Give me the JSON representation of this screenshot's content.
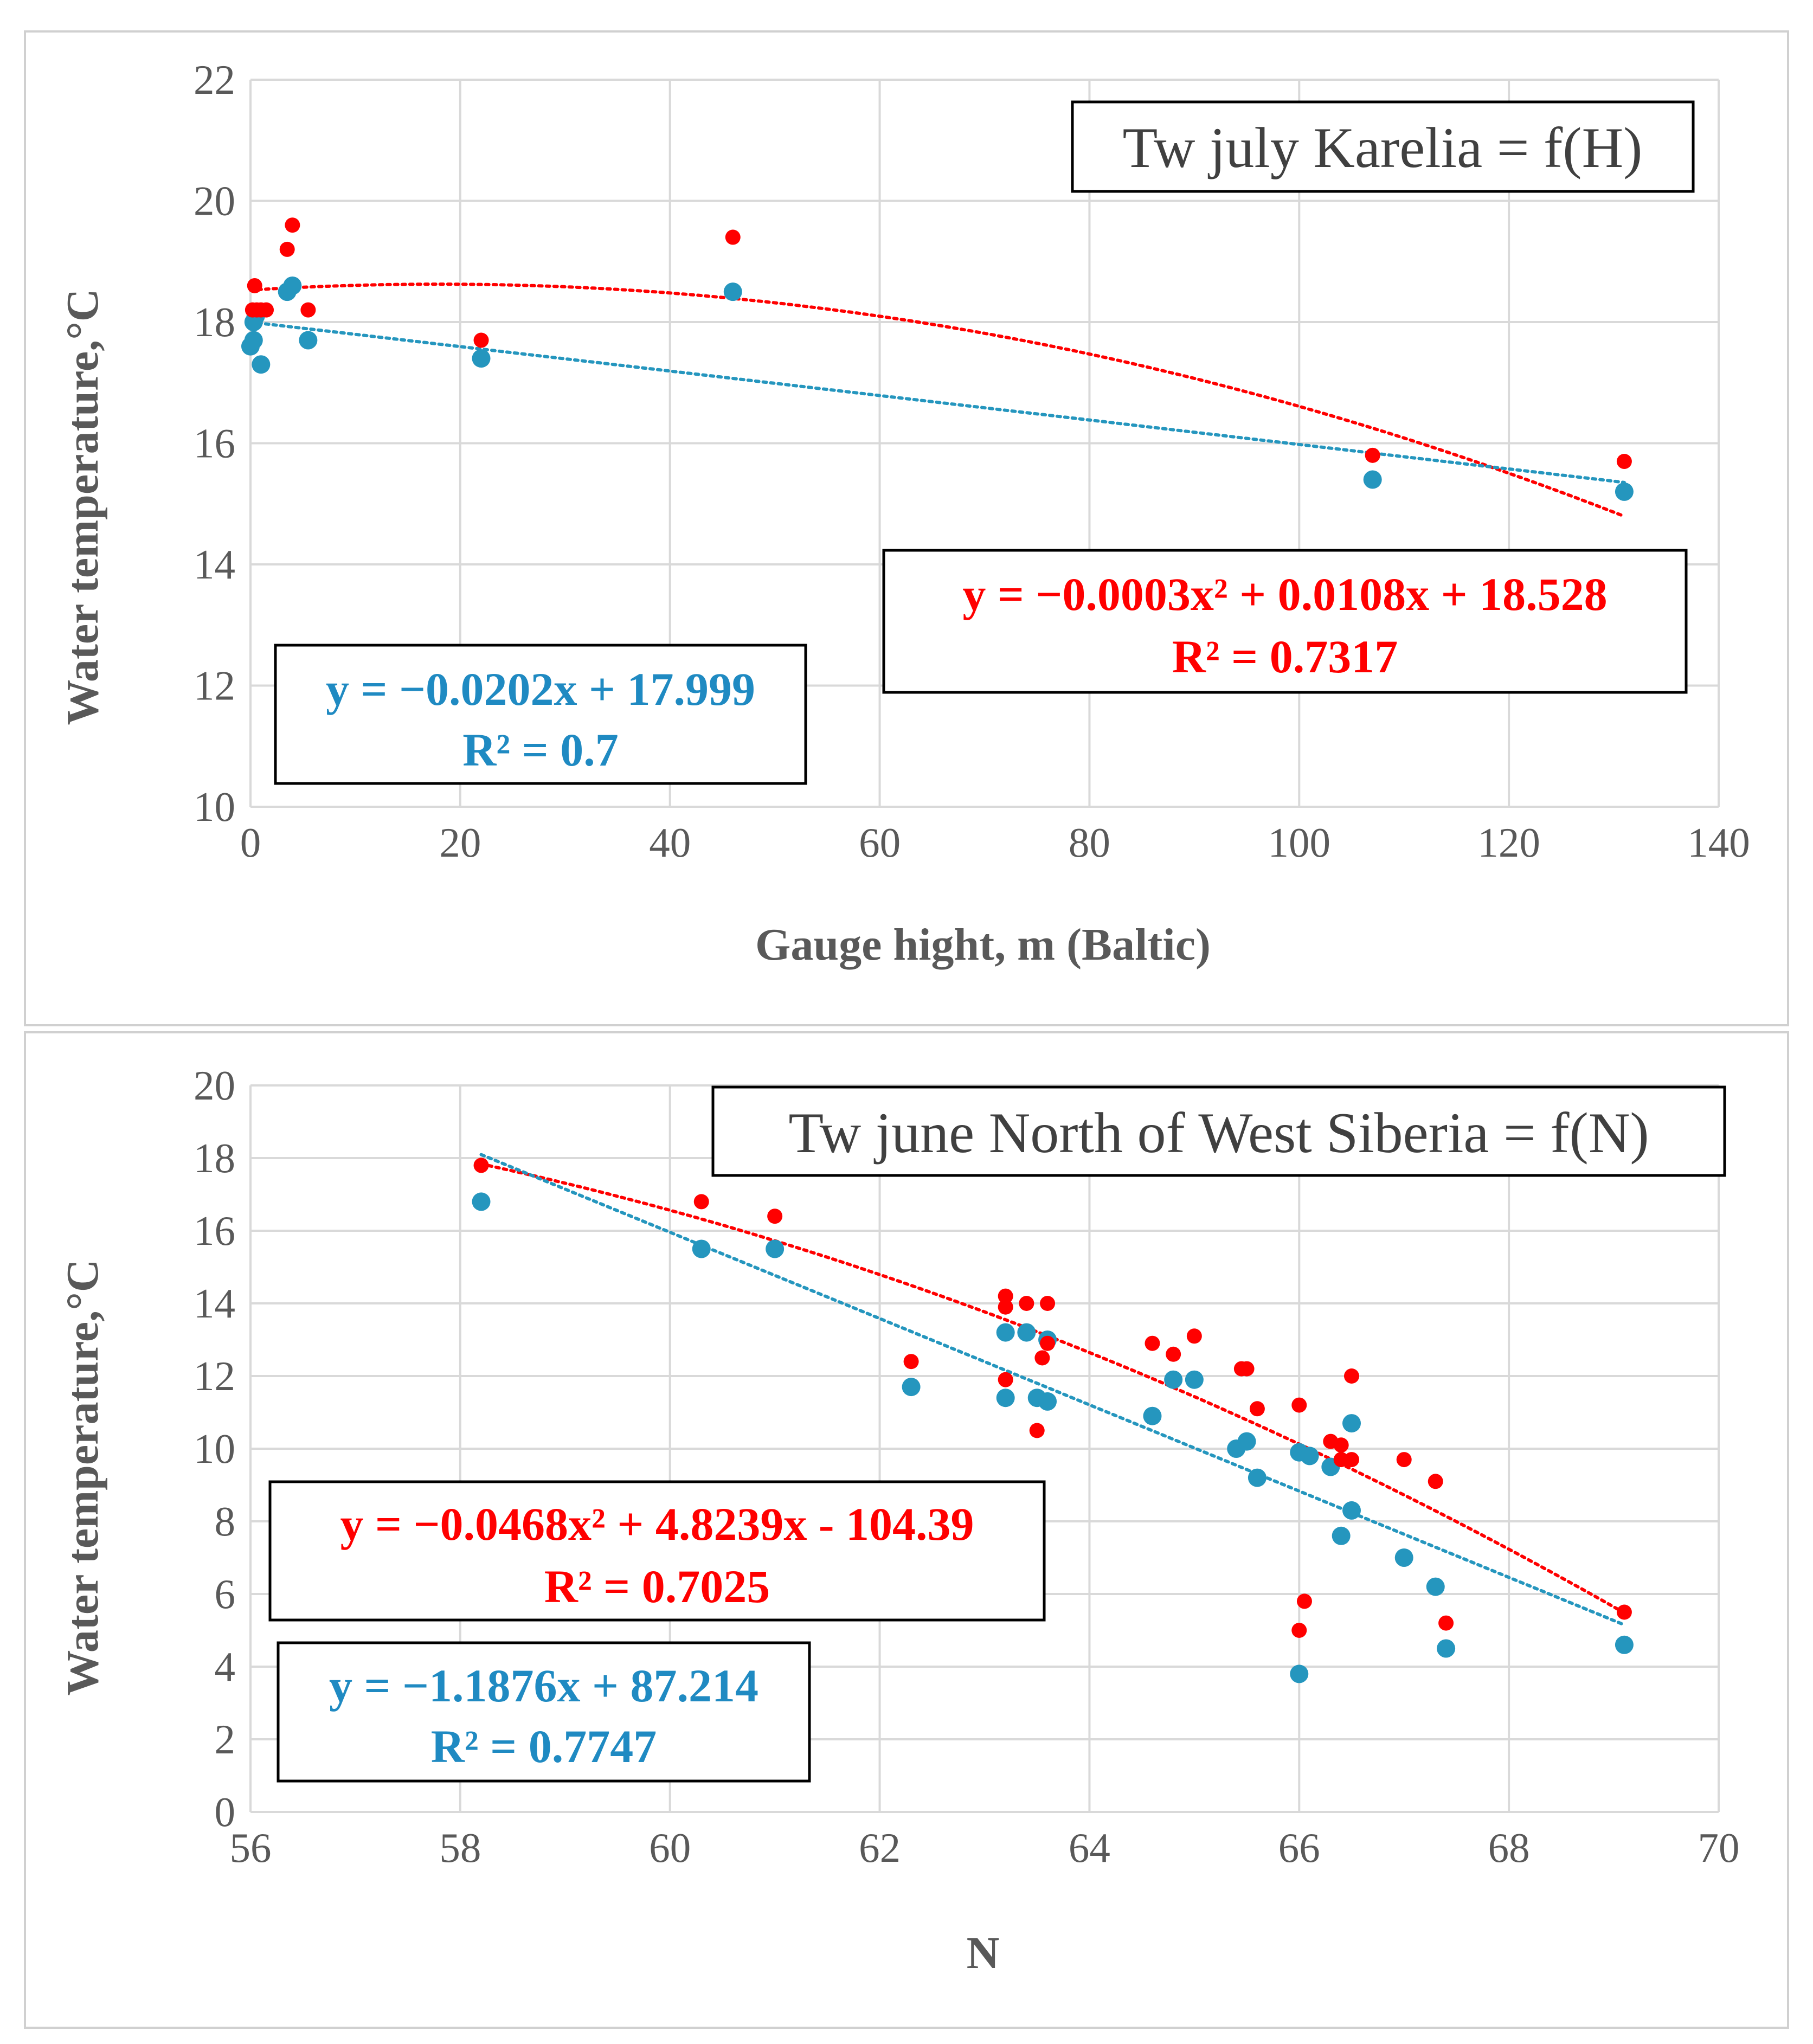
{
  "chart_data": [
    {
      "type": "scatter",
      "title": "Tw july Karelia = f(H)",
      "xlabel": "Gauge hight, m (Baltic)",
      "ylabel": "Water temperature,°C",
      "xlim": [
        0,
        140
      ],
      "ylim": [
        10,
        22
      ],
      "xticks": [
        "0",
        "20",
        "40",
        "60",
        "80",
        "100",
        "120",
        "140"
      ],
      "yticks": [
        "10",
        "12",
        "14",
        "16",
        "18",
        "20",
        "22"
      ],
      "grid": true,
      "series": [
        {
          "name": "red",
          "color": "#FF0000",
          "points": [
            [
              0.2,
              18.2
            ],
            [
              0.4,
              18.6
            ],
            [
              0.6,
              18.2
            ],
            [
              1.0,
              18.2
            ],
            [
              1.5,
              18.2
            ],
            [
              3.5,
              19.2
            ],
            [
              4.0,
              19.6
            ],
            [
              5.5,
              18.2
            ],
            [
              22,
              17.7
            ],
            [
              46,
              19.4
            ],
            [
              107,
              15.8
            ],
            [
              131,
              15.7
            ]
          ]
        },
        {
          "name": "blue",
          "color": "#2596BE",
          "points": [
            [
              0.0,
              17.6
            ],
            [
              0.3,
              17.7
            ],
            [
              0.3,
              18.0
            ],
            [
              0.5,
              18.1
            ],
            [
              1.0,
              17.3
            ],
            [
              3.5,
              18.5
            ],
            [
              4.0,
              18.6
            ],
            [
              5.5,
              17.7
            ],
            [
              22,
              17.4
            ],
            [
              46,
              18.5
            ],
            [
              107,
              15.4
            ],
            [
              131,
              15.2
            ]
          ]
        }
      ],
      "trendlines": [
        {
          "series": "red",
          "kind": "poly2",
          "coef": [
            -0.0003,
            0.0108,
            18.528
          ],
          "x_range": [
            0,
            131
          ]
        },
        {
          "series": "blue",
          "kind": "linear",
          "coef": [
            -0.0202,
            17.999
          ],
          "x_range": [
            0,
            131
          ]
        }
      ],
      "annotations": {
        "red_eq": "y =  −0.0003x² + 0.0108x + 18.528",
        "red_r2": "R² = 0.7317",
        "blue_eq": "y = −0.0202x + 17.999",
        "blue_r2": "R² = 0.7"
      }
    },
    {
      "type": "scatter",
      "title": "Tw june North of West Siberia = f(N)",
      "xlabel": "N",
      "ylabel": "Water temperature,°C",
      "xlim": [
        56,
        70
      ],
      "ylim": [
        0,
        20
      ],
      "xticks": [
        "56",
        "58",
        "60",
        "62",
        "64",
        "66",
        "68",
        "70"
      ],
      "yticks": [
        "0",
        "2",
        "4",
        "6",
        "8",
        "10",
        "12",
        "14",
        "16",
        "18",
        "20"
      ],
      "grid": true,
      "series": [
        {
          "name": "red",
          "color": "#FF0000",
          "points": [
            [
              58.2,
              17.8
            ],
            [
              60.3,
              16.8
            ],
            [
              61.0,
              16.4
            ],
            [
              62.3,
              12.4
            ],
            [
              63.2,
              14.2
            ],
            [
              63.2,
              13.9
            ],
            [
              63.2,
              11.9
            ],
            [
              63.4,
              14.0
            ],
            [
              63.5,
              10.5
            ],
            [
              63.55,
              12.5
            ],
            [
              63.6,
              14.0
            ],
            [
              63.6,
              12.9
            ],
            [
              64.6,
              12.9
            ],
            [
              64.8,
              12.6
            ],
            [
              65.0,
              13.1
            ],
            [
              65.45,
              12.2
            ],
            [
              65.5,
              12.2
            ],
            [
              65.6,
              11.1
            ],
            [
              66.0,
              11.2
            ],
            [
              66.0,
              5.0
            ],
            [
              66.05,
              5.8
            ],
            [
              66.3,
              10.2
            ],
            [
              66.4,
              10.1
            ],
            [
              66.4,
              9.7
            ],
            [
              66.5,
              9.7
            ],
            [
              66.5,
              12.0
            ],
            [
              67.0,
              9.7
            ],
            [
              67.3,
              9.1
            ],
            [
              67.4,
              5.2
            ],
            [
              69.1,
              5.5
            ]
          ]
        },
        {
          "name": "blue",
          "color": "#2596BE",
          "points": [
            [
              58.2,
              16.8
            ],
            [
              60.3,
              15.5
            ],
            [
              61.0,
              15.5
            ],
            [
              62.3,
              11.7
            ],
            [
              63.2,
              13.2
            ],
            [
              63.2,
              11.4
            ],
            [
              63.4,
              13.2
            ],
            [
              63.5,
              11.4
            ],
            [
              63.6,
              13.0
            ],
            [
              63.6,
              11.3
            ],
            [
              64.6,
              10.9
            ],
            [
              64.8,
              11.9
            ],
            [
              65.0,
              11.9
            ],
            [
              65.4,
              10.0
            ],
            [
              65.5,
              10.2
            ],
            [
              65.6,
              9.2
            ],
            [
              66.0,
              9.9
            ],
            [
              66.1,
              9.8
            ],
            [
              66.3,
              9.5
            ],
            [
              66.4,
              7.6
            ],
            [
              66.0,
              3.8
            ],
            [
              66.5,
              8.3
            ],
            [
              66.5,
              10.7
            ],
            [
              67.0,
              7.0
            ],
            [
              67.3,
              6.2
            ],
            [
              67.4,
              4.5
            ],
            [
              69.1,
              4.6
            ]
          ]
        }
      ],
      "trendlines": [
        {
          "series": "red",
          "kind": "poly2",
          "coef": [
            -0.0468,
            4.8239,
            -104.39
          ],
          "x_range": [
            58.2,
            69.1
          ]
        },
        {
          "series": "blue",
          "kind": "linear",
          "coef": [
            -1.1876,
            87.214
          ],
          "x_range": [
            58.2,
            69.1
          ]
        }
      ],
      "annotations": {
        "red_eq": "y = −0.0468x² + 4.8239x - 104.39",
        "red_r2": "R² = 0.7025",
        "blue_eq": "y = −1.1876x + 87.214",
        "blue_r2": "R² = 0.7747"
      }
    }
  ]
}
